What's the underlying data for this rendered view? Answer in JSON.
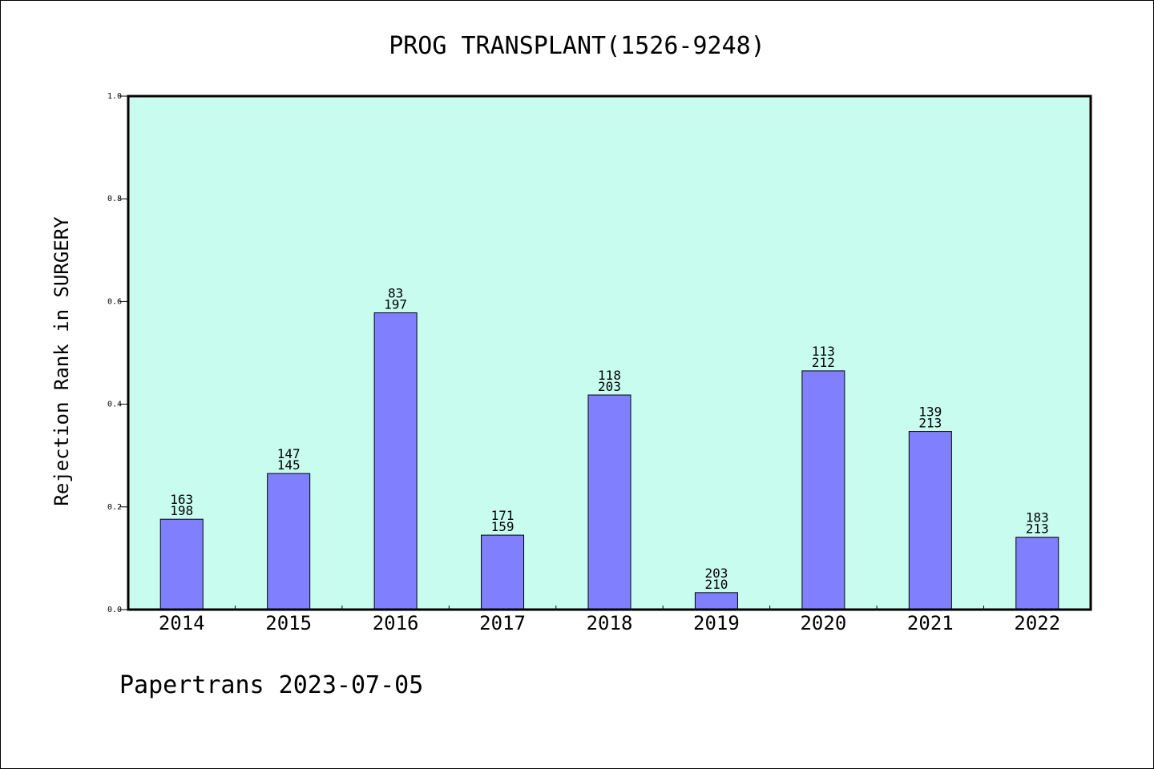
{
  "chart_data": {
    "type": "bar",
    "title": "PROG TRANSPLANT(1526-9248)",
    "xlabel": "",
    "ylabel": "Rejection Rank in SURGERY",
    "ylim": [
      0,
      1.0
    ],
    "yticks": [
      "0.0",
      "0.2",
      "0.4",
      "0.6",
      "0.8",
      "1.0"
    ],
    "categories": [
      "2014",
      "2015",
      "2016",
      "2017",
      "2018",
      "2019",
      "2020",
      "2021",
      "2022"
    ],
    "values": [
      0.176,
      0.265,
      0.578,
      0.145,
      0.418,
      0.033,
      0.465,
      0.347,
      0.141
    ],
    "labels_top": [
      "163",
      "147",
      "83",
      "171",
      "118",
      "203",
      "113",
      "139",
      "183"
    ],
    "labels_bottom": [
      "198",
      "145",
      "197",
      "159",
      "203",
      "210",
      "212",
      "213",
      "213"
    ],
    "grid": false,
    "colors": {
      "plot_background": "#c8fcee",
      "bar": "#8080ff",
      "axis": "#000000"
    }
  },
  "footer": "Papertrans 2023-07-05"
}
